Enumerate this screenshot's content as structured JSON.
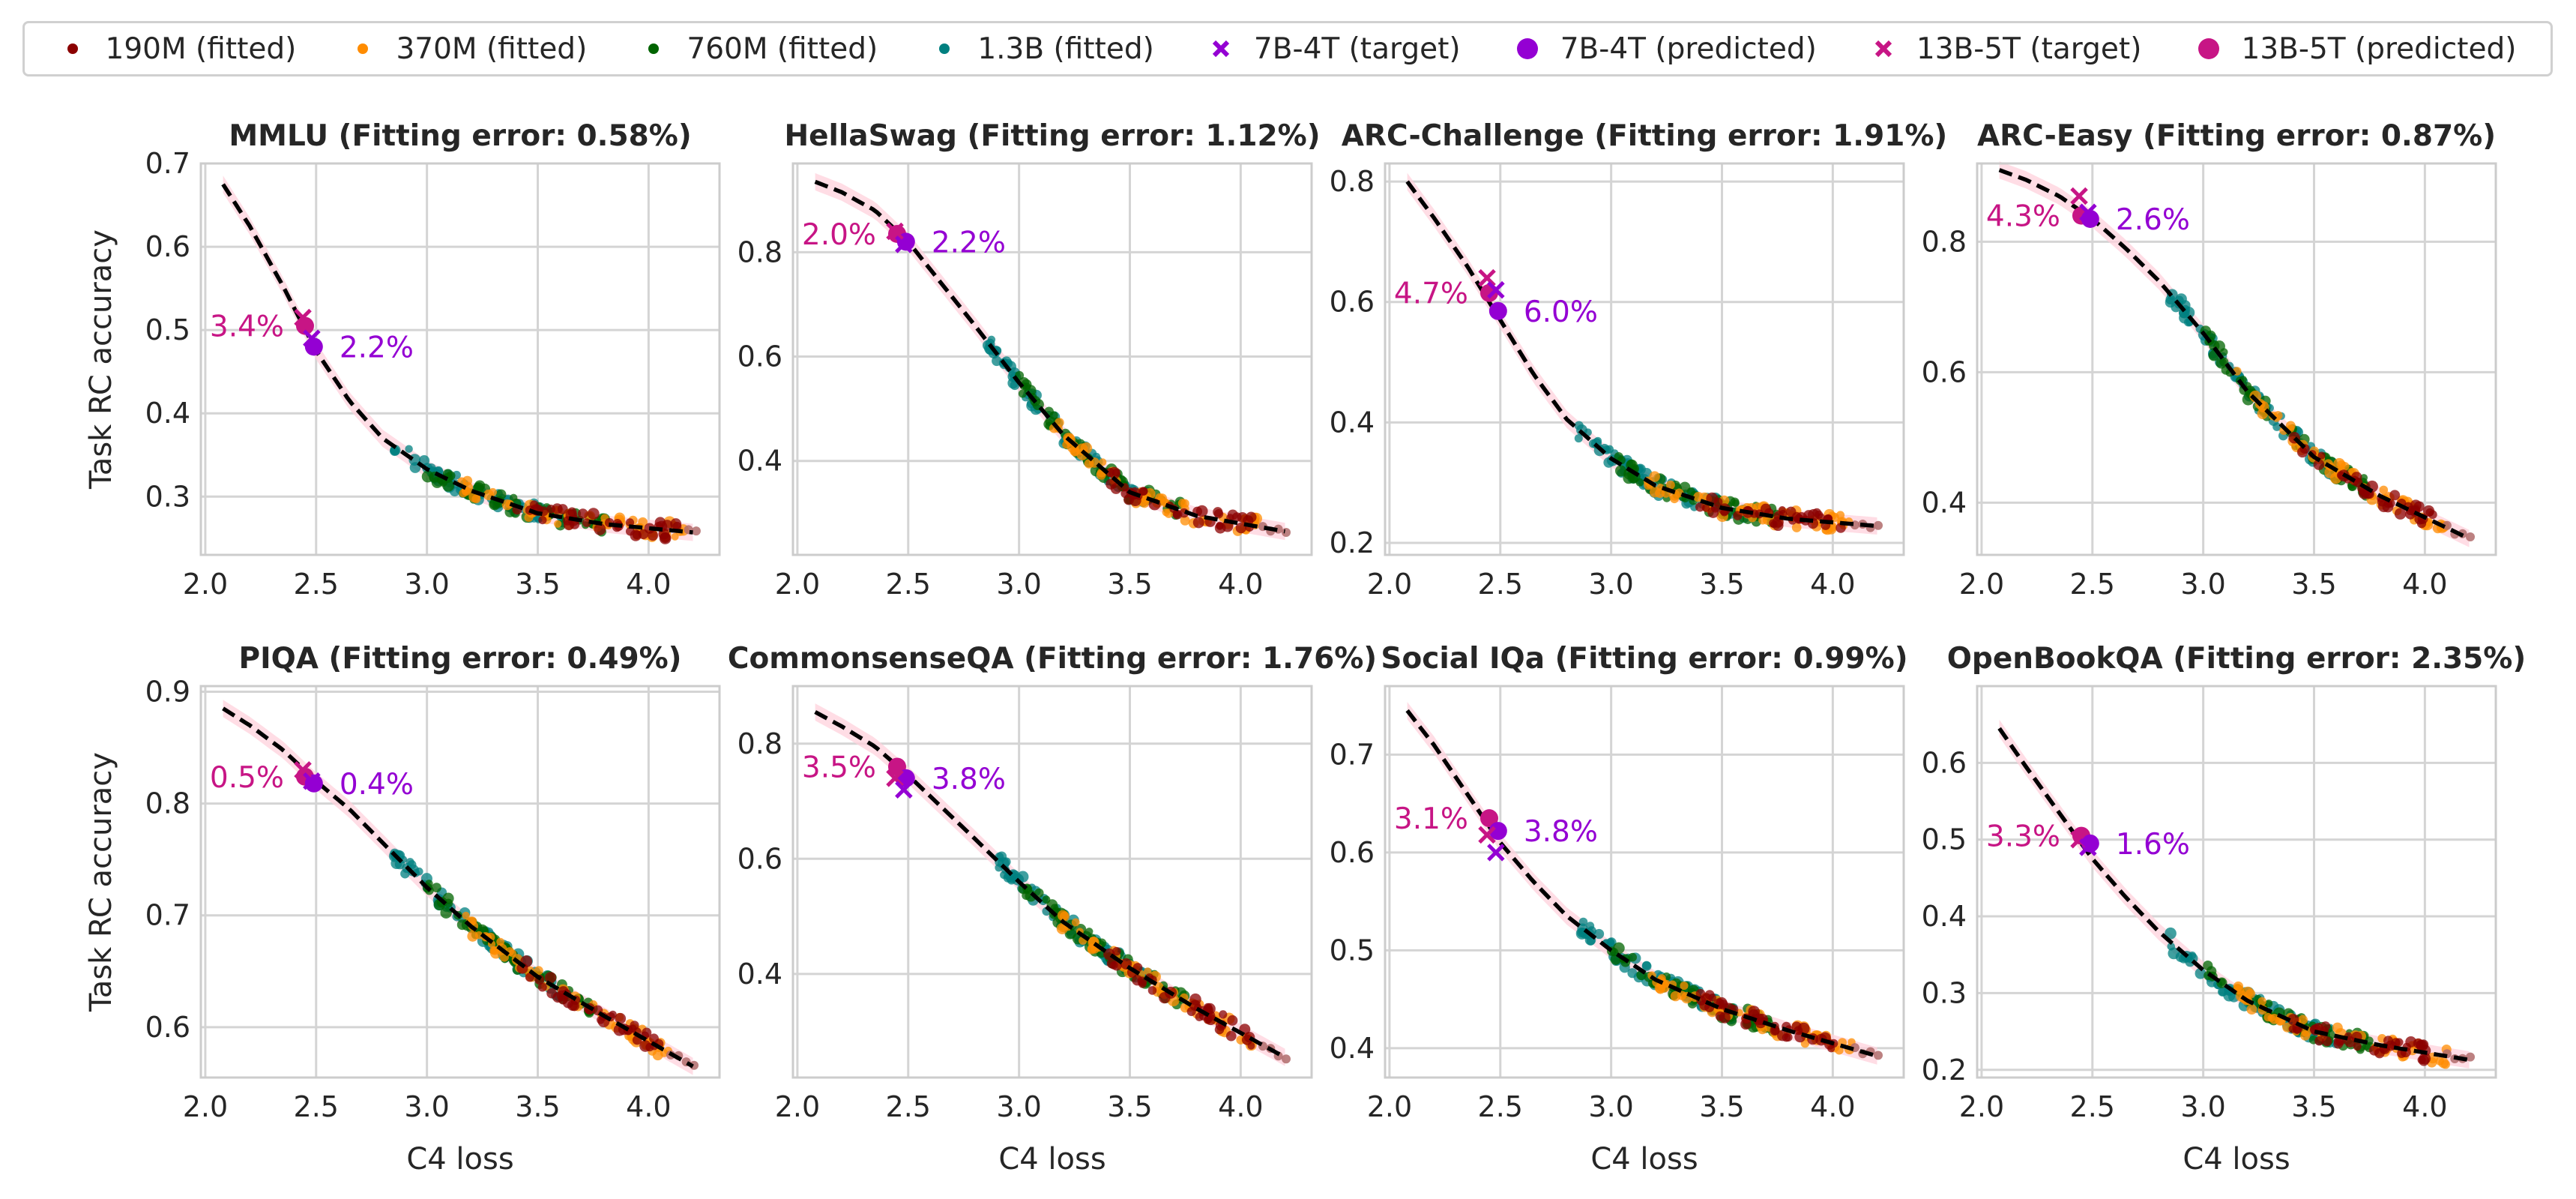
{
  "legend": [
    {
      "label": "190M (fitted)",
      "marker": "dot-small",
      "color": "#8b0000"
    },
    {
      "label": "370M (fitted)",
      "marker": "dot-small",
      "color": "#ff8c00"
    },
    {
      "label": "760M (fitted)",
      "marker": "dot-small",
      "color": "#006400"
    },
    {
      "label": "1.3B (fitted)",
      "marker": "dot-small",
      "color": "#008080"
    },
    {
      "label": "7B-4T (target)",
      "marker": "cross",
      "color": "#9400d3"
    },
    {
      "label": "7B-4T (predicted)",
      "marker": "dot",
      "color": "#9400d3"
    },
    {
      "label": "13B-5T (target)",
      "marker": "cross",
      "color": "#c71585"
    },
    {
      "label": "13B-5T (predicted)",
      "marker": "dot",
      "color": "#c71585"
    }
  ],
  "colors": {
    "fit_curve": "#000000",
    "band": "#ffd1dc",
    "grid": "#d4d4d4",
    "frame": "#cccccc",
    "tail": "#b06b6b",
    "7B": "#9400d3",
    "13B": "#c71585"
  },
  "chart_data": [
    {
      "type": "scatter",
      "title": "MMLU (Fitting error: 0.58%)",
      "xlabel": "",
      "ylabel": "Task RC accuracy",
      "xlim": [
        1.98,
        4.32
      ],
      "ylim": [
        0.23,
        0.7
      ],
      "xticks": [
        2.0,
        2.5,
        3.0,
        3.5,
        4.0
      ],
      "xticklabels": [
        "2.0",
        "2.5",
        "3.0",
        "3.5",
        "4.0"
      ],
      "yticks": [
        0.3,
        0.4,
        0.5,
        0.6,
        0.7
      ],
      "yticklabels": [
        "0.3",
        "0.4",
        "0.5",
        "0.6",
        "0.7"
      ],
      "curve": [
        [
          2.08,
          0.675
        ],
        [
          2.2,
          0.625
        ],
        [
          2.35,
          0.553
        ],
        [
          2.5,
          0.475
        ],
        [
          2.65,
          0.415
        ],
        [
          2.8,
          0.37
        ],
        [
          3.0,
          0.333
        ],
        [
          3.2,
          0.307
        ],
        [
          3.5,
          0.28
        ],
        [
          3.8,
          0.267
        ],
        [
          4.2,
          0.257
        ]
      ],
      "fitted_range": [
        2.85,
        4.18
      ],
      "points": {
        "7B_target": [
          2.48,
          0.49
        ],
        "7B_predicted": [
          2.49,
          0.48
        ],
        "13B_target": [
          2.44,
          0.515
        ],
        "13B_predicted": [
          2.45,
          0.505
        ]
      },
      "annotations": {
        "13B": "3.4%",
        "7B": "2.2%"
      }
    },
    {
      "type": "scatter",
      "title": "HellaSwag (Fitting error: 1.12%)",
      "xlabel": "",
      "ylabel": "",
      "xlim": [
        1.98,
        4.32
      ],
      "ylim": [
        0.22,
        0.97
      ],
      "xticks": [
        2.0,
        2.5,
        3.0,
        3.5,
        4.0
      ],
      "xticklabels": [
        "2.0",
        "2.5",
        "3.0",
        "3.5",
        "4.0"
      ],
      "yticks": [
        0.4,
        0.6,
        0.8
      ],
      "yticklabels": [
        "0.4",
        "0.6",
        "0.8"
      ],
      "curve": [
        [
          2.08,
          0.935
        ],
        [
          2.2,
          0.915
        ],
        [
          2.35,
          0.88
        ],
        [
          2.5,
          0.82
        ],
        [
          2.65,
          0.74
        ],
        [
          2.8,
          0.66
        ],
        [
          3.0,
          0.55
        ],
        [
          3.2,
          0.45
        ],
        [
          3.5,
          0.34
        ],
        [
          3.8,
          0.295
        ],
        [
          4.2,
          0.265
        ]
      ],
      "fitted_range": [
        2.85,
        4.1
      ],
      "points": {
        "7B_target": [
          2.48,
          0.815
        ],
        "7B_predicted": [
          2.49,
          0.82
        ],
        "13B_target": [
          2.44,
          0.84
        ],
        "13B_predicted": [
          2.45,
          0.835
        ]
      },
      "annotations": {
        "13B": "2.0%",
        "7B": "2.2%"
      }
    },
    {
      "type": "scatter",
      "title": "ARC-Challenge (Fitting error: 1.91%)",
      "xlabel": "",
      "ylabel": "",
      "xlim": [
        1.98,
        4.32
      ],
      "ylim": [
        0.18,
        0.83
      ],
      "xticks": [
        2.0,
        2.5,
        3.0,
        3.5,
        4.0
      ],
      "xticklabels": [
        "2.0",
        "2.5",
        "3.0",
        "3.5",
        "4.0"
      ],
      "yticks": [
        0.2,
        0.4,
        0.6,
        0.8
      ],
      "yticklabels": [
        "0.2",
        "0.4",
        "0.6",
        "0.8"
      ],
      "curve": [
        [
          2.08,
          0.8
        ],
        [
          2.2,
          0.74
        ],
        [
          2.35,
          0.66
        ],
        [
          2.5,
          0.57
        ],
        [
          2.65,
          0.48
        ],
        [
          2.8,
          0.405
        ],
        [
          3.0,
          0.34
        ],
        [
          3.2,
          0.295
        ],
        [
          3.5,
          0.258
        ],
        [
          3.8,
          0.24
        ],
        [
          4.2,
          0.228
        ]
      ],
      "fitted_range": [
        2.85,
        4.1
      ],
      "points": {
        "7B_target": [
          2.48,
          0.62
        ],
        "7B_predicted": [
          2.49,
          0.585
        ],
        "13B_target": [
          2.44,
          0.64
        ],
        "13B_predicted": [
          2.45,
          0.615
        ]
      },
      "annotations": {
        "13B": "4.7%",
        "7B": "6.0%"
      }
    },
    {
      "type": "scatter",
      "title": "ARC-Easy (Fitting error: 0.87%)",
      "xlabel": "",
      "ylabel": "",
      "xlim": [
        1.98,
        4.32
      ],
      "ylim": [
        0.32,
        0.92
      ],
      "xticks": [
        2.0,
        2.5,
        3.0,
        3.5,
        4.0
      ],
      "xticklabels": [
        "2.0",
        "2.5",
        "3.0",
        "3.5",
        "4.0"
      ],
      "yticks": [
        0.4,
        0.6,
        0.8
      ],
      "yticklabels": [
        "0.4",
        "0.6",
        "0.8"
      ],
      "curve": [
        [
          2.08,
          0.91
        ],
        [
          2.2,
          0.895
        ],
        [
          2.35,
          0.87
        ],
        [
          2.5,
          0.835
        ],
        [
          2.65,
          0.79
        ],
        [
          2.8,
          0.74
        ],
        [
          3.0,
          0.66
        ],
        [
          3.2,
          0.57
        ],
        [
          3.5,
          0.47
        ],
        [
          3.8,
          0.41
        ],
        [
          4.2,
          0.345
        ]
      ],
      "fitted_range": [
        2.85,
        4.1
      ],
      "points": {
        "7B_target": [
          2.48,
          0.845
        ],
        "7B_predicted": [
          2.49,
          0.835
        ],
        "13B_target": [
          2.44,
          0.87
        ],
        "13B_predicted": [
          2.45,
          0.84
        ]
      },
      "annotations": {
        "13B": "4.3%",
        "7B": "2.6%"
      }
    },
    {
      "type": "scatter",
      "title": "PIQA (Fitting error: 0.49%)",
      "xlabel": "C4 loss",
      "ylabel": "Task RC accuracy",
      "xlim": [
        1.98,
        4.32
      ],
      "ylim": [
        0.555,
        0.905
      ],
      "xticks": [
        2.0,
        2.5,
        3.0,
        3.5,
        4.0
      ],
      "xticklabels": [
        "2.0",
        "2.5",
        "3.0",
        "3.5",
        "4.0"
      ],
      "yticks": [
        0.6,
        0.7,
        0.8,
        0.9
      ],
      "yticklabels": [
        "0.6",
        "0.7",
        "0.8",
        "0.9"
      ],
      "curve": [
        [
          2.08,
          0.885
        ],
        [
          2.2,
          0.87
        ],
        [
          2.35,
          0.848
        ],
        [
          2.5,
          0.82
        ],
        [
          2.65,
          0.795
        ],
        [
          2.8,
          0.765
        ],
        [
          3.0,
          0.725
        ],
        [
          3.2,
          0.69
        ],
        [
          3.5,
          0.645
        ],
        [
          3.8,
          0.61
        ],
        [
          4.2,
          0.565
        ]
      ],
      "fitted_range": [
        2.85,
        4.1
      ],
      "points": {
        "7B_target": [
          2.48,
          0.82
        ],
        "7B_predicted": [
          2.49,
          0.818
        ],
        "13B_target": [
          2.44,
          0.83
        ],
        "13B_predicted": [
          2.45,
          0.824
        ]
      },
      "annotations": {
        "13B": "0.5%",
        "7B": "0.4%"
      }
    },
    {
      "type": "scatter",
      "title": "CommonsenseQA (Fitting error: 1.76%)",
      "xlabel": "C4 loss",
      "ylabel": "",
      "xlim": [
        1.98,
        4.32
      ],
      "ylim": [
        0.22,
        0.9
      ],
      "xticks": [
        2.0,
        2.5,
        3.0,
        3.5,
        4.0
      ],
      "xticklabels": [
        "2.0",
        "2.5",
        "3.0",
        "3.5",
        "4.0"
      ],
      "yticks": [
        0.4,
        0.6,
        0.8
      ],
      "yticklabels": [
        "0.4",
        "0.6",
        "0.8"
      ],
      "curve": [
        [
          2.08,
          0.855
        ],
        [
          2.2,
          0.83
        ],
        [
          2.35,
          0.795
        ],
        [
          2.5,
          0.745
        ],
        [
          2.65,
          0.69
        ],
        [
          2.8,
          0.635
        ],
        [
          3.0,
          0.56
        ],
        [
          3.2,
          0.49
        ],
        [
          3.5,
          0.41
        ],
        [
          3.8,
          0.34
        ],
        [
          4.2,
          0.255
        ]
      ],
      "fitted_range": [
        2.85,
        4.1
      ],
      "points": {
        "7B_target": [
          2.48,
          0.72
        ],
        "7B_predicted": [
          2.49,
          0.74
        ],
        "13B_target": [
          2.44,
          0.74
        ],
        "13B_predicted": [
          2.45,
          0.76
        ]
      },
      "annotations": {
        "13B": "3.5%",
        "7B": "3.8%"
      }
    },
    {
      "type": "scatter",
      "title": "Social IQa (Fitting error: 0.99%)",
      "xlabel": "C4 loss",
      "ylabel": "",
      "xlim": [
        1.98,
        4.32
      ],
      "ylim": [
        0.37,
        0.77
      ],
      "xticks": [
        2.0,
        2.5,
        3.0,
        3.5,
        4.0
      ],
      "xticklabels": [
        "2.0",
        "2.5",
        "3.0",
        "3.5",
        "4.0"
      ],
      "yticks": [
        0.4,
        0.5,
        0.6,
        0.7
      ],
      "yticklabels": [
        "0.4",
        "0.5",
        "0.6",
        "0.7"
      ],
      "curve": [
        [
          2.08,
          0.745
        ],
        [
          2.2,
          0.71
        ],
        [
          2.35,
          0.66
        ],
        [
          2.5,
          0.61
        ],
        [
          2.65,
          0.57
        ],
        [
          2.8,
          0.535
        ],
        [
          3.0,
          0.5
        ],
        [
          3.2,
          0.47
        ],
        [
          3.5,
          0.44
        ],
        [
          3.8,
          0.418
        ],
        [
          4.2,
          0.392
        ]
      ],
      "fitted_range": [
        2.85,
        4.1
      ],
      "points": {
        "7B_target": [
          2.48,
          0.6
        ],
        "7B_predicted": [
          2.49,
          0.622
        ],
        "13B_target": [
          2.44,
          0.618
        ],
        "13B_predicted": [
          2.45,
          0.635
        ]
      },
      "annotations": {
        "13B": "3.1%",
        "7B": "3.8%"
      }
    },
    {
      "type": "scatter",
      "title": "OpenBookQA (Fitting error: 2.35%)",
      "xlabel": "C4 loss",
      "ylabel": "",
      "xlim": [
        1.98,
        4.32
      ],
      "ylim": [
        0.19,
        0.7
      ],
      "xticks": [
        2.0,
        2.5,
        3.0,
        3.5,
        4.0
      ],
      "xticklabels": [
        "2.0",
        "2.5",
        "3.0",
        "3.5",
        "4.0"
      ],
      "yticks": [
        0.2,
        0.3,
        0.4,
        0.5,
        0.6
      ],
      "yticklabels": [
        "0.2",
        "0.3",
        "0.4",
        "0.5",
        "0.6"
      ],
      "curve": [
        [
          2.08,
          0.645
        ],
        [
          2.2,
          0.595
        ],
        [
          2.35,
          0.535
        ],
        [
          2.5,
          0.475
        ],
        [
          2.65,
          0.425
        ],
        [
          2.8,
          0.38
        ],
        [
          3.0,
          0.33
        ],
        [
          3.2,
          0.29
        ],
        [
          3.5,
          0.25
        ],
        [
          3.8,
          0.232
        ],
        [
          4.2,
          0.213
        ]
      ],
      "fitted_range": [
        2.85,
        4.1
      ],
      "points": {
        "7B_target": [
          2.48,
          0.49
        ],
        "7B_predicted": [
          2.49,
          0.495
        ],
        "13B_target": [
          2.44,
          0.5
        ],
        "13B_predicted": [
          2.45,
          0.505
        ]
      },
      "annotations": {
        "13B": "3.3%",
        "7B": "1.6%"
      }
    }
  ]
}
